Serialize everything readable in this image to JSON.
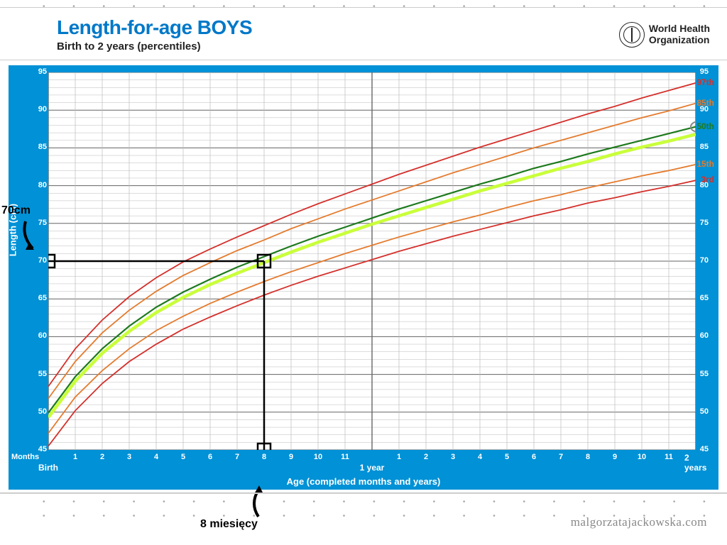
{
  "header": {
    "title": "Length-for-age BOYS",
    "subtitle": "Birth to 2 years (percentiles)",
    "who": "World Health\nOrganization"
  },
  "chart": {
    "type": "line",
    "y_axis_label": "Length (cm)",
    "x_axis_label": "Age (completed months and years)",
    "months_label": "Months",
    "background_color": "#0091d6",
    "plot_background": "#ffffff",
    "grid_color": "#666666",
    "minor_grid_color": "#bbbbbb",
    "ylim": [
      45,
      95
    ],
    "xlim_months": [
      0,
      24
    ],
    "y_ticks": [
      45,
      50,
      55,
      60,
      65,
      70,
      75,
      80,
      85,
      90,
      95
    ],
    "x_tick_months": [
      1,
      2,
      3,
      4,
      5,
      6,
      7,
      8,
      9,
      10,
      11,
      13,
      14,
      15,
      16,
      17,
      18,
      19,
      20,
      21,
      22,
      23
    ],
    "x_major_labels": {
      "0": "Birth",
      "12": "1 year",
      "24": "2 years"
    },
    "percentiles": {
      "p3": {
        "label": "3rd",
        "color": "#d4302b",
        "stroke_width": 1.8,
        "values": [
          45.5,
          50.2,
          53.8,
          56.7,
          59.0,
          61.0,
          62.6,
          64.1,
          65.5,
          66.8,
          68.0,
          69.1,
          70.2,
          71.3,
          72.3,
          73.3,
          74.2,
          75.1,
          76.0,
          76.8,
          77.7,
          78.4,
          79.2,
          79.9,
          80.7
        ]
      },
      "p15": {
        "label": "15th",
        "color": "#e47b2e",
        "stroke_width": 1.8,
        "values": [
          47.2,
          52.0,
          55.5,
          58.4,
          60.8,
          62.7,
          64.4,
          65.9,
          67.3,
          68.6,
          69.8,
          71.0,
          72.1,
          73.2,
          74.2,
          75.2,
          76.1,
          77.1,
          78.0,
          78.8,
          79.7,
          80.5,
          81.3,
          82.0,
          82.8
        ]
      },
      "p50": {
        "label": "50th",
        "color": "#1d7a1d",
        "stroke_width": 2.2,
        "values": [
          49.9,
          54.7,
          58.4,
          61.4,
          63.9,
          65.9,
          67.6,
          69.2,
          70.6,
          72.0,
          73.3,
          74.5,
          75.7,
          76.9,
          78.0,
          79.1,
          80.2,
          81.2,
          82.3,
          83.2,
          84.2,
          85.1,
          86.0,
          86.9,
          87.8
        ]
      },
      "p85": {
        "label": "85th",
        "color": "#e47b2e",
        "stroke_width": 1.8,
        "values": [
          51.8,
          56.7,
          60.5,
          63.5,
          66.0,
          68.1,
          69.8,
          71.4,
          72.8,
          74.3,
          75.6,
          76.9,
          78.1,
          79.3,
          80.5,
          81.7,
          82.8,
          83.9,
          85.0,
          86.0,
          87.0,
          88.0,
          89.0,
          89.9,
          90.9
        ]
      },
      "p97": {
        "label": "97th",
        "color": "#d4302b",
        "stroke_width": 1.8,
        "values": [
          53.4,
          58.4,
          62.2,
          65.3,
          67.8,
          69.9,
          71.6,
          73.2,
          74.7,
          76.2,
          77.6,
          78.9,
          80.2,
          81.5,
          82.7,
          83.9,
          85.1,
          86.2,
          87.3,
          88.4,
          89.5,
          90.5,
          91.6,
          92.6,
          93.6
        ]
      }
    },
    "highlight_curve": {
      "color": "#c9ff3a",
      "stroke_width": 4.5,
      "values": [
        49.3,
        54.1,
        57.8,
        60.7,
        63.2,
        65.2,
        66.9,
        68.4,
        69.8,
        71.2,
        72.5,
        73.7,
        74.9,
        76.0,
        77.1,
        78.2,
        79.3,
        80.3,
        81.3,
        82.3,
        83.2,
        84.2,
        85.1,
        85.9,
        86.8
      ]
    },
    "marker": {
      "x_month": 8,
      "y_cm": 70,
      "line_color": "#000000",
      "line_width": 2.5,
      "box_size": 9
    }
  },
  "annotations": {
    "y_note": "70cm",
    "x_note": "8 miesięcy"
  },
  "footer": {
    "watermark": "malgorzatajackowska.com"
  }
}
